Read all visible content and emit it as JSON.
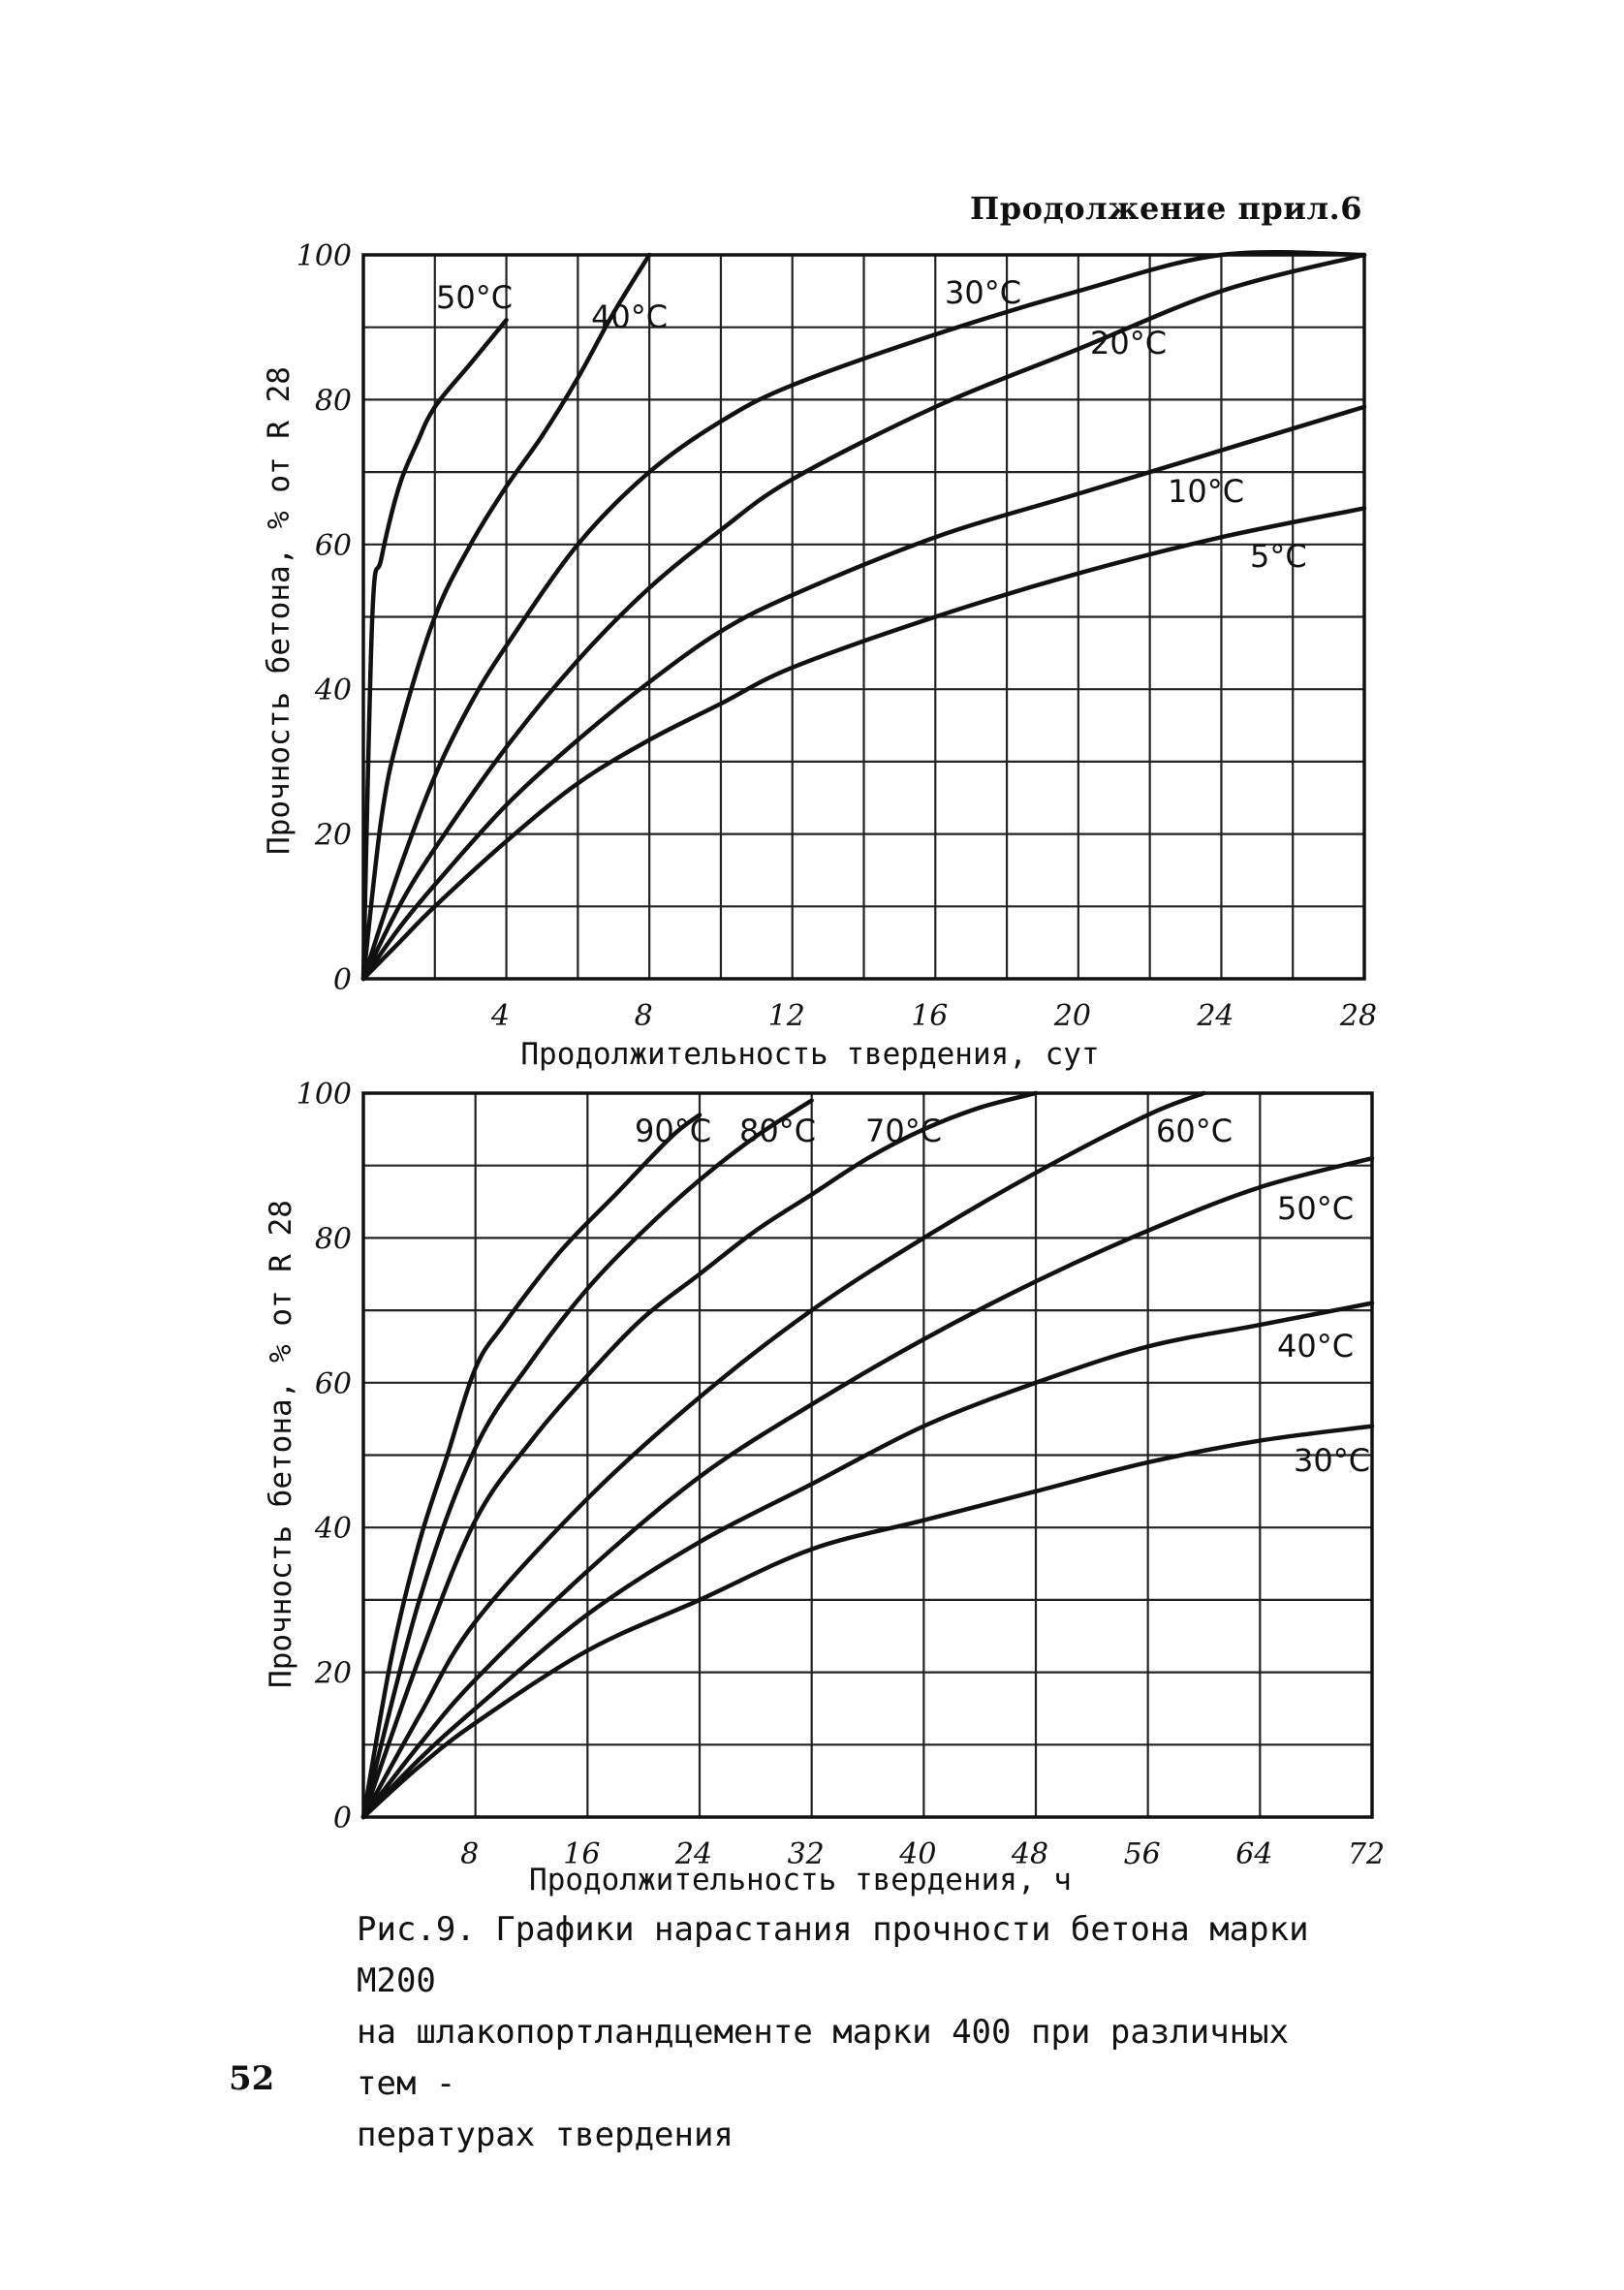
{
  "header": "Продолжение прил.6",
  "page_number": "52",
  "caption": {
    "line1": "Рис.9. Графики нарастания прочности бетона марки М200",
    "line2": "на шлакопортландцементе марки 400 при различных тем -",
    "line3": "пературах твердения"
  },
  "chart_data": [
    {
      "type": "line",
      "title": "",
      "xlabel": "Продолжительность твердения, сут",
      "ylabel": "Прочность бетона, % от R 28",
      "xlim": [
        0,
        28
      ],
      "ylim": [
        0,
        100
      ],
      "x_ticks": [
        "4",
        "8",
        "12",
        "16",
        "20",
        "24",
        "28"
      ],
      "y_ticks": [
        "0",
        "20",
        "40",
        "60",
        "80",
        "100"
      ],
      "series": [
        {
          "name": "50°C",
          "label": "50",
          "x": [
            0,
            0.25,
            0.5,
            1,
            1.5,
            2,
            3,
            4
          ],
          "values": [
            0,
            50,
            58,
            68,
            74,
            79,
            85,
            91
          ]
        },
        {
          "name": "40°C",
          "label": "40",
          "x": [
            0,
            0.5,
            1,
            2,
            3,
            4,
            5,
            6,
            7,
            8
          ],
          "values": [
            0,
            22,
            34,
            50,
            60,
            68,
            75,
            83,
            92,
            100
          ]
        },
        {
          "name": "30°C",
          "label": "30",
          "x": [
            0,
            1,
            2,
            3,
            4,
            6,
            8,
            10,
            12,
            16,
            20,
            24,
            28
          ],
          "values": [
            0,
            15,
            28,
            38,
            46,
            60,
            70,
            77,
            82,
            89,
            95,
            100,
            100
          ]
        },
        {
          "name": "20°C",
          "label": "20",
          "x": [
            0,
            1,
            2,
            4,
            6,
            8,
            10,
            12,
            16,
            20,
            24,
            28
          ],
          "values": [
            0,
            10,
            18,
            32,
            44,
            54,
            62,
            69,
            79,
            87,
            95,
            100
          ]
        },
        {
          "name": "10°C",
          "label": "10",
          "x": [
            0,
            1,
            2,
            4,
            6,
            8,
            10,
            12,
            16,
            20,
            24,
            28
          ],
          "values": [
            0,
            7,
            13,
            24,
            33,
            41,
            48,
            53,
            61,
            67,
            73,
            79
          ]
        },
        {
          "name": "5°C",
          "label": "5",
          "x": [
            0,
            1,
            2,
            4,
            6,
            8,
            10,
            12,
            16,
            20,
            24,
            28
          ],
          "values": [
            0,
            5,
            10,
            19,
            27,
            33,
            38,
            43,
            50,
            56,
            61,
            65
          ]
        }
      ],
      "curve_labels": [
        "50",
        "40",
        "30",
        "20",
        "10",
        "5"
      ],
      "degree_suffix": "°C"
    },
    {
      "type": "line",
      "title": "",
      "xlabel": "Продолжительность твердения, ч",
      "ylabel": "Прочность бетона, % от R 28",
      "xlim": [
        0,
        72
      ],
      "ylim": [
        0,
        100
      ],
      "x_ticks": [
        "8",
        "16",
        "24",
        "32",
        "40",
        "48",
        "56",
        "64",
        "72"
      ],
      "y_ticks": [
        "0",
        "20",
        "40",
        "60",
        "80",
        "100"
      ],
      "series": [
        {
          "name": "90°C",
          "label": "90",
          "x": [
            0,
            2,
            4,
            6,
            8,
            10,
            14,
            18,
            22,
            24
          ],
          "values": [
            0,
            22,
            38,
            50,
            62,
            68,
            78,
            86,
            94,
            97
          ]
        },
        {
          "name": "80°C",
          "label": "80",
          "x": [
            0,
            4,
            8,
            12,
            16,
            20,
            24,
            28,
            32
          ],
          "values": [
            0,
            30,
            51,
            63,
            73,
            81,
            88,
            94,
            99
          ]
        },
        {
          "name": "70°C",
          "label": "70",
          "x": [
            0,
            4,
            8,
            12,
            16,
            20,
            24,
            28,
            32,
            36,
            40,
            44,
            48
          ],
          "values": [
            0,
            22,
            41,
            52,
            61,
            69,
            75,
            81,
            86,
            91,
            95,
            98,
            100
          ]
        },
        {
          "name": "60°C",
          "label": "60",
          "x": [
            0,
            4,
            8,
            16,
            24,
            32,
            40,
            48,
            56,
            60
          ],
          "values": [
            0,
            14,
            27,
            44,
            58,
            70,
            80,
            89,
            97,
            100
          ]
        },
        {
          "name": "50°C",
          "label": "50",
          "x": [
            0,
            4,
            8,
            16,
            24,
            32,
            40,
            48,
            56,
            64,
            72
          ],
          "values": [
            0,
            10,
            19,
            34,
            47,
            57,
            66,
            74,
            81,
            87,
            91
          ]
        },
        {
          "name": "40°C",
          "label": "40",
          "x": [
            0,
            4,
            8,
            16,
            24,
            32,
            40,
            48,
            56,
            64,
            72
          ],
          "values": [
            0,
            8,
            15,
            28,
            38,
            46,
            54,
            60,
            65,
            68,
            71
          ]
        },
        {
          "name": "30°C",
          "label": "30",
          "x": [
            0,
            4,
            8,
            16,
            24,
            32,
            40,
            48,
            56,
            64,
            72
          ],
          "values": [
            0,
            7,
            13,
            23,
            30,
            37,
            41,
            45,
            49,
            52,
            54
          ]
        }
      ],
      "curve_labels": [
        "90",
        "80",
        "70",
        "60",
        "50",
        "40",
        "30"
      ],
      "degree_suffix": "°C"
    }
  ]
}
